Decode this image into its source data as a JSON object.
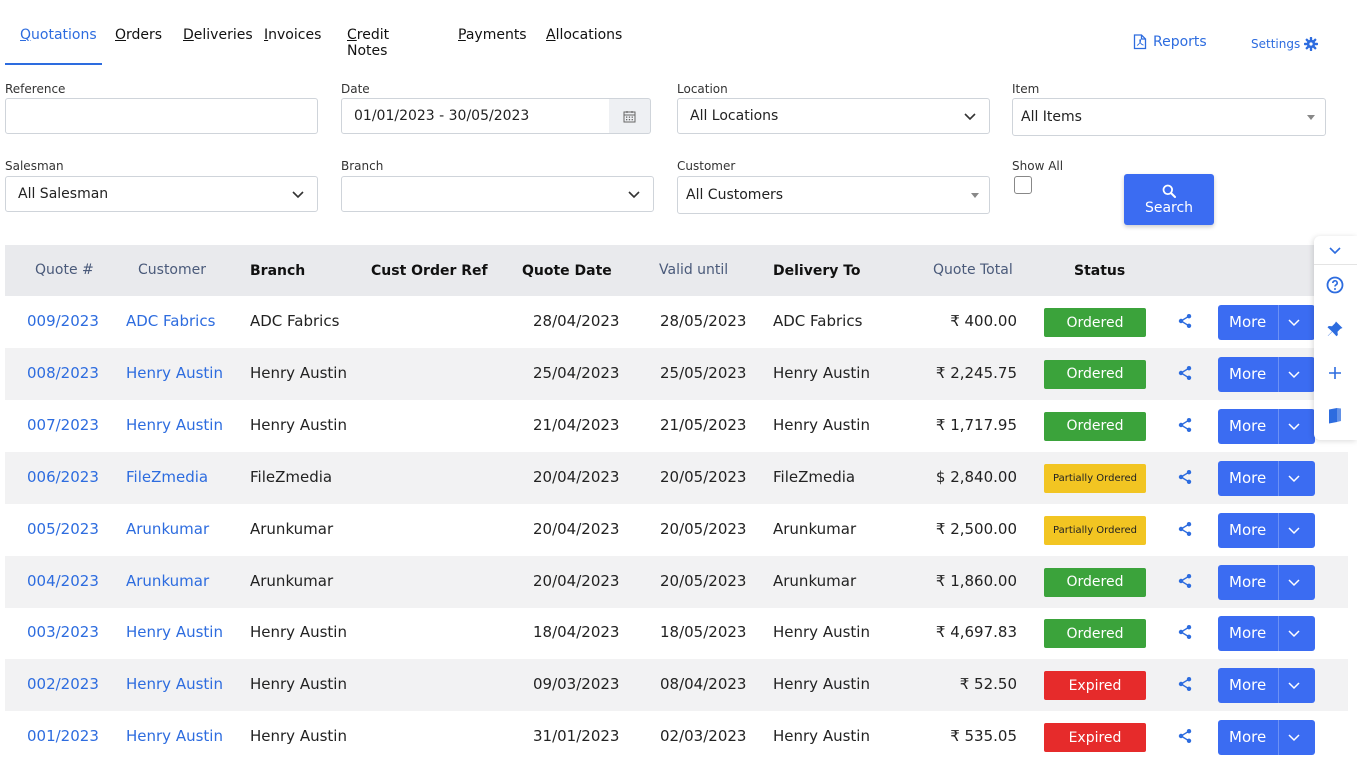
{
  "tabs": [
    {
      "u": "Q",
      "rest": "uotations"
    },
    {
      "u": "O",
      "rest": "rders"
    },
    {
      "u": "D",
      "rest": "eliveries"
    },
    {
      "u": "I",
      "rest": "nvoices"
    },
    {
      "u": "C",
      "rest": "redit Notes"
    },
    {
      "u": "P",
      "rest": "ayments"
    },
    {
      "u": "A",
      "rest": "llocations"
    }
  ],
  "header": {
    "reports": "Reports",
    "settings": "Settings"
  },
  "filters": {
    "reference_label": "Reference",
    "reference_value": "",
    "date_label": "Date",
    "date_value": "01/01/2023 - 30/05/2023",
    "location_label": "Location",
    "location_value": "All Locations",
    "item_label": "Item",
    "item_value": "All Items",
    "salesman_label": "Salesman",
    "salesman_value": "All Salesman",
    "branch_label": "Branch",
    "branch_value": "",
    "customer_label": "Customer",
    "customer_value": "All Customers",
    "showall_label": "Show All",
    "search_label": "Search"
  },
  "table": {
    "headers": [
      "Quote #",
      "Customer",
      "Branch",
      "Cust Order Ref",
      "Quote Date",
      "Valid until",
      "Delivery To",
      "Quote Total",
      "Status"
    ],
    "more_label": "More",
    "rows": [
      {
        "quote": "009/2023",
        "customer": "ADC Fabrics",
        "branch": "ADC Fabrics",
        "ref": "",
        "qdate": "28/04/2023",
        "valid": "28/05/2023",
        "delivery": "ADC Fabrics",
        "total": "₹ 400.00",
        "status": "Ordered",
        "kind": "ordered"
      },
      {
        "quote": "008/2023",
        "customer": "Henry Austin",
        "branch": "Henry Austin",
        "ref": "",
        "qdate": "25/04/2023",
        "valid": "25/05/2023",
        "delivery": "Henry Austin",
        "total": "₹ 2,245.75",
        "status": "Ordered",
        "kind": "ordered"
      },
      {
        "quote": "007/2023",
        "customer": "Henry Austin",
        "branch": "Henry Austin",
        "ref": "",
        "qdate": "21/04/2023",
        "valid": "21/05/2023",
        "delivery": "Henry Austin",
        "total": "₹ 1,717.95",
        "status": "Ordered",
        "kind": "ordered"
      },
      {
        "quote": "006/2023",
        "customer": "FileZmedia",
        "branch": "FileZmedia",
        "ref": "",
        "qdate": "20/04/2023",
        "valid": "20/05/2023",
        "delivery": "FileZmedia",
        "total": "$ 2,840.00",
        "status": "Partially Ordered",
        "kind": "partial"
      },
      {
        "quote": "005/2023",
        "customer": "Arunkumar",
        "branch": "Arunkumar",
        "ref": "",
        "qdate": "20/04/2023",
        "valid": "20/05/2023",
        "delivery": "Arunkumar",
        "total": "₹ 2,500.00",
        "status": "Partially Ordered",
        "kind": "partial"
      },
      {
        "quote": "004/2023",
        "customer": "Arunkumar",
        "branch": "Arunkumar",
        "ref": "",
        "qdate": "20/04/2023",
        "valid": "20/05/2023",
        "delivery": "Arunkumar",
        "total": "₹ 1,860.00",
        "status": "Ordered",
        "kind": "ordered"
      },
      {
        "quote": "003/2023",
        "customer": "Henry Austin",
        "branch": "Henry Austin",
        "ref": "",
        "qdate": "18/04/2023",
        "valid": "18/05/2023",
        "delivery": "Henry Austin",
        "total": "₹ 4,697.83",
        "status": "Ordered",
        "kind": "ordered"
      },
      {
        "quote": "002/2023",
        "customer": "Henry Austin",
        "branch": "Henry Austin",
        "ref": "",
        "qdate": "09/03/2023",
        "valid": "08/04/2023",
        "delivery": "Henry Austin",
        "total": "₹ 52.50",
        "status": "Expired",
        "kind": "expired"
      },
      {
        "quote": "001/2023",
        "customer": "Henry Austin",
        "branch": "Henry Austin",
        "ref": "",
        "qdate": "31/01/2023",
        "valid": "02/03/2023",
        "delivery": "Henry Austin",
        "total": "₹ 535.05",
        "status": "Expired",
        "kind": "expired"
      }
    ]
  },
  "colors": {
    "accent": "#2d6cdf",
    "button": "#3b6cf2",
    "ordered": "#3ba33b",
    "partial": "#f2c522",
    "expired": "#e62b2b"
  },
  "side_panel_icons": [
    "chevron-down-icon",
    "help-icon",
    "pin-icon",
    "plus-icon",
    "book-icon"
  ]
}
